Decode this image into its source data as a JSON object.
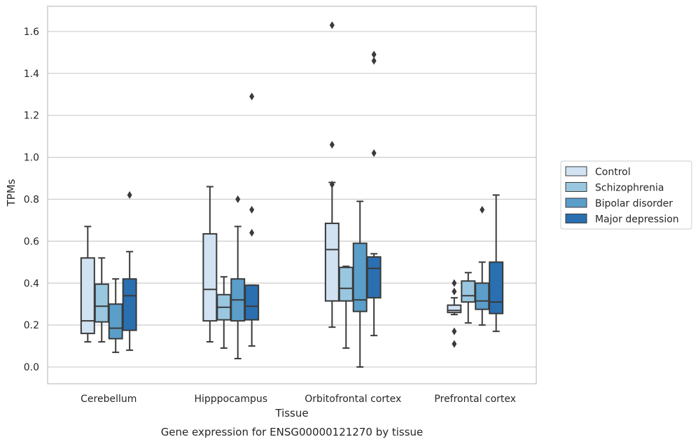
{
  "chart_data": {
    "type": "box",
    "caption": "Gene expression for ENSG00000121270 by tissue",
    "xlabel": "Tissue",
    "ylabel": "TPMs",
    "ylim": [
      -0.08,
      1.72
    ],
    "yticks": [
      0.0,
      0.2,
      0.4,
      0.6,
      0.8,
      1.0,
      1.2,
      1.4,
      1.6
    ],
    "grid": "horizontal",
    "legend_position": "right",
    "categories": [
      "Cerebellum",
      "Hipppocampus",
      "Orbitofrontal cortex",
      "Prefrontal cortex"
    ],
    "series": [
      {
        "name": "Control",
        "color": "#d1e2f2",
        "boxes": [
          {
            "whisker_low": 0.12,
            "q1": 0.16,
            "median": 0.22,
            "q3": 0.52,
            "whisker_high": 0.67,
            "outliers": []
          },
          {
            "whisker_low": 0.12,
            "q1": 0.22,
            "median": 0.37,
            "q3": 0.635,
            "whisker_high": 0.86,
            "outliers": []
          },
          {
            "whisker_low": 0.19,
            "q1": 0.315,
            "median": 0.56,
            "q3": 0.685,
            "whisker_high": 0.88,
            "outliers": [
              1.06,
              0.87,
              1.63
            ]
          },
          {
            "whisker_low": 0.25,
            "q1": 0.26,
            "median": 0.27,
            "q3": 0.295,
            "whisker_high": 0.33,
            "outliers": [
              0.11,
              0.17,
              0.36,
              0.4
            ]
          }
        ]
      },
      {
        "name": "Schizophrenia",
        "color": "#9ac7e0",
        "boxes": [
          {
            "whisker_low": 0.12,
            "q1": 0.215,
            "median": 0.29,
            "q3": 0.395,
            "whisker_high": 0.52,
            "outliers": []
          },
          {
            "whisker_low": 0.09,
            "q1": 0.225,
            "median": 0.285,
            "q3": 0.345,
            "whisker_high": 0.43,
            "outliers": []
          },
          {
            "whisker_low": 0.09,
            "q1": 0.315,
            "median": 0.375,
            "q3": 0.475,
            "whisker_high": 0.48,
            "outliers": []
          },
          {
            "whisker_low": 0.21,
            "q1": 0.31,
            "median": 0.34,
            "q3": 0.41,
            "whisker_high": 0.45,
            "outliers": []
          }
        ]
      },
      {
        "name": "Bipolar disorder",
        "color": "#5a9ec9",
        "boxes": [
          {
            "whisker_low": 0.07,
            "q1": 0.135,
            "median": 0.185,
            "q3": 0.3,
            "whisker_high": 0.42,
            "outliers": []
          },
          {
            "whisker_low": 0.04,
            "q1": 0.22,
            "median": 0.32,
            "q3": 0.42,
            "whisker_high": 0.67,
            "outliers": [
              0.8
            ]
          },
          {
            "whisker_low": 0.0,
            "q1": 0.265,
            "median": 0.32,
            "q3": 0.59,
            "whisker_high": 0.79,
            "outliers": []
          },
          {
            "whisker_low": 0.2,
            "q1": 0.275,
            "median": 0.315,
            "q3": 0.4,
            "whisker_high": 0.5,
            "outliers": [
              0.75
            ]
          }
        ]
      },
      {
        "name": "Major depression",
        "color": "#2a6fb0",
        "boxes": [
          {
            "whisker_low": 0.08,
            "q1": 0.175,
            "median": 0.34,
            "q3": 0.42,
            "whisker_high": 0.55,
            "outliers": [
              0.82
            ]
          },
          {
            "whisker_low": 0.1,
            "q1": 0.225,
            "median": 0.29,
            "q3": 0.39,
            "whisker_high": 0.39,
            "outliers": [
              0.64,
              0.75,
              1.29
            ]
          },
          {
            "whisker_low": 0.15,
            "q1": 0.33,
            "median": 0.47,
            "q3": 0.525,
            "whisker_high": 0.54,
            "outliers": [
              1.02,
              1.46,
              1.49
            ]
          },
          {
            "whisker_low": 0.17,
            "q1": 0.255,
            "median": 0.31,
            "q3": 0.5,
            "whisker_high": 0.82,
            "outliers": []
          }
        ]
      }
    ]
  }
}
